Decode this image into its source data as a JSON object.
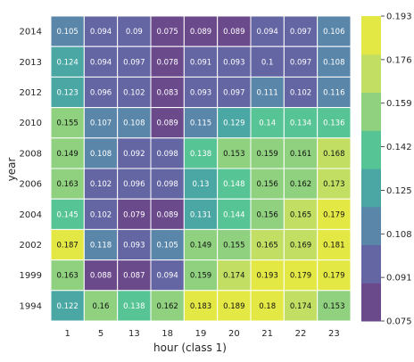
{
  "chart_data": {
    "type": "heatmap",
    "title": "",
    "xlabel": "hour (class 1)",
    "ylabel": "year",
    "x": [
      "1",
      "5",
      "13",
      "18",
      "19",
      "20",
      "21",
      "22",
      "23"
    ],
    "y": [
      "2014",
      "2013",
      "2012",
      "2010",
      "2008",
      "2006",
      "2004",
      "2002",
      "1999",
      "1994"
    ],
    "values": [
      [
        0.105,
        0.094,
        0.09,
        0.075,
        0.089,
        0.089,
        0.094,
        0.097,
        0.106
      ],
      [
        0.124,
        0.094,
        0.097,
        0.078,
        0.091,
        0.093,
        0.1,
        0.097,
        0.108
      ],
      [
        0.123,
        0.096,
        0.102,
        0.083,
        0.093,
        0.097,
        0.111,
        0.102,
        0.116
      ],
      [
        0.155,
        0.107,
        0.108,
        0.089,
        0.115,
        0.129,
        0.14,
        0.134,
        0.136
      ],
      [
        0.149,
        0.108,
        0.092,
        0.098,
        0.138,
        0.153,
        0.159,
        0.161,
        0.168
      ],
      [
        0.163,
        0.102,
        0.096,
        0.098,
        0.13,
        0.148,
        0.156,
        0.162,
        0.173
      ],
      [
        0.145,
        0.102,
        0.079,
        0.089,
        0.131,
        0.144,
        0.156,
        0.165,
        0.179
      ],
      [
        0.187,
        0.118,
        0.093,
        0.105,
        0.149,
        0.155,
        0.165,
        0.169,
        0.181
      ],
      [
        0.163,
        0.088,
        0.087,
        0.094,
        0.159,
        0.174,
        0.193,
        0.179,
        0.179
      ],
      [
        0.122,
        0.16,
        0.138,
        0.162,
        0.183,
        0.189,
        0.18,
        0.174,
        0.153
      ]
    ],
    "value_labels": [
      [
        "0.105",
        "0.094",
        "0.09",
        "0.075",
        "0.089",
        "0.089",
        "0.094",
        "0.097",
        "0.106"
      ],
      [
        "0.124",
        "0.094",
        "0.097",
        "0.078",
        "0.091",
        "0.093",
        "0.1",
        "0.097",
        "0.108"
      ],
      [
        "0.123",
        "0.096",
        "0.102",
        "0.083",
        "0.093",
        "0.097",
        "0.111",
        "0.102",
        "0.116"
      ],
      [
        "0.155",
        "0.107",
        "0.108",
        "0.089",
        "0.115",
        "0.129",
        "0.14",
        "0.134",
        "0.136"
      ],
      [
        "0.149",
        "0.108",
        "0.092",
        "0.098",
        "0.138",
        "0.153",
        "0.159",
        "0.161",
        "0.168"
      ],
      [
        "0.163",
        "0.102",
        "0.096",
        "0.098",
        "0.13",
        "0.148",
        "0.156",
        "0.162",
        "0.173"
      ],
      [
        "0.145",
        "0.102",
        "0.079",
        "0.089",
        "0.131",
        "0.144",
        "0.156",
        "0.165",
        "0.179"
      ],
      [
        "0.187",
        "0.118",
        "0.093",
        "0.105",
        "0.149",
        "0.155",
        "0.165",
        "0.169",
        "0.181"
      ],
      [
        "0.163",
        "0.088",
        "0.087",
        "0.094",
        "0.159",
        "0.174",
        "0.193",
        "0.179",
        "0.179"
      ],
      [
        "0.122",
        "0.16",
        "0.138",
        "0.162",
        "0.183",
        "0.189",
        "0.18",
        "0.174",
        "0.153"
      ]
    ],
    "colorbar": {
      "min": 0.075,
      "max": 0.193,
      "ticks": [
        "0.075",
        "0.091",
        "0.108",
        "0.125",
        "0.142",
        "0.159",
        "0.176",
        "0.193"
      ],
      "colors": [
        "#6b4a8c",
        "#6465a3",
        "#5a86a9",
        "#4aa7a3",
        "#56c494",
        "#8fd17f",
        "#c2df63",
        "#e4e845"
      ]
    },
    "grid": false,
    "cell_text_colors": {
      "light": "#ffffff",
      "dark": "#111111"
    }
  }
}
